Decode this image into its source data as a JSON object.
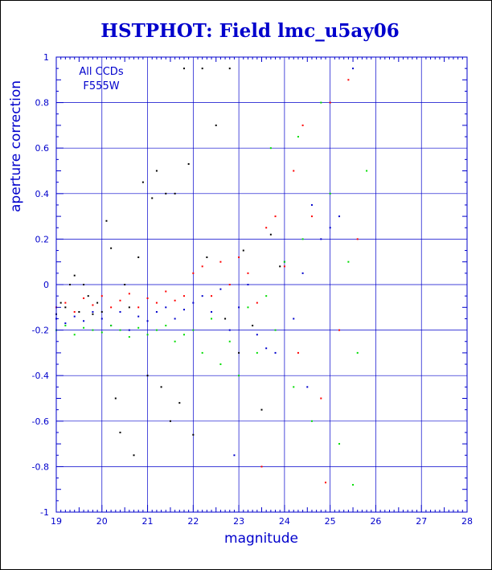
{
  "chart_data": {
    "type": "scatter",
    "title": "HSTPHOT: Field lmc_u5ay06",
    "xlabel": "magnitude",
    "ylabel": "aperture correction",
    "xlim": [
      19,
      28
    ],
    "ylim": [
      -1,
      1
    ],
    "xticks": [
      "19",
      "20",
      "21",
      "22",
      "23",
      "24",
      "25",
      "26",
      "27",
      "28"
    ],
    "yticks": [
      "-1",
      "-0.8",
      "-0.6",
      "-0.4",
      "-0.2",
      "0",
      "0.2",
      "0.4",
      "0.6",
      "0.8",
      "1"
    ],
    "grid": true,
    "annotations": [
      "All CCDs",
      "F555W"
    ],
    "colors": {
      "title": "#0000cc",
      "axes": "#0000cc",
      "grid": "#0000cc"
    },
    "series": [
      {
        "color": "#000000",
        "points": [
          [
            19.0,
            -0.13
          ],
          [
            19.1,
            -0.08
          ],
          [
            19.2,
            -0.1
          ],
          [
            19.3,
            0.0
          ],
          [
            19.4,
            0.04
          ],
          [
            19.5,
            -0.12
          ],
          [
            19.6,
            0.0
          ],
          [
            19.7,
            -0.05
          ],
          [
            19.8,
            -0.13
          ],
          [
            19.9,
            -0.08
          ],
          [
            20.0,
            -0.12
          ],
          [
            20.1,
            0.28
          ],
          [
            20.2,
            0.16
          ],
          [
            20.3,
            -0.5
          ],
          [
            20.4,
            -0.65
          ],
          [
            20.5,
            0.0
          ],
          [
            20.6,
            -0.1
          ],
          [
            20.7,
            -0.75
          ],
          [
            20.8,
            0.12
          ],
          [
            20.9,
            0.45
          ],
          [
            21.0,
            -0.4
          ],
          [
            21.1,
            0.38
          ],
          [
            21.2,
            0.5
          ],
          [
            21.3,
            -0.45
          ],
          [
            21.4,
            0.4
          ],
          [
            21.5,
            -0.6
          ],
          [
            21.6,
            0.4
          ],
          [
            21.7,
            -0.52
          ],
          [
            21.8,
            0.95
          ],
          [
            21.9,
            0.53
          ],
          [
            22.0,
            -0.66
          ],
          [
            22.2,
            0.95
          ],
          [
            22.3,
            0.12
          ],
          [
            22.5,
            0.7
          ],
          [
            22.7,
            -0.15
          ],
          [
            22.8,
            0.95
          ],
          [
            23.0,
            -0.3
          ],
          [
            23.1,
            0.15
          ],
          [
            23.3,
            -0.18
          ],
          [
            23.5,
            -0.55
          ],
          [
            23.7,
            0.22
          ],
          [
            23.9,
            0.08
          ]
        ]
      },
      {
        "color": "#ff0000",
        "points": [
          [
            19.0,
            -0.1
          ],
          [
            19.2,
            -0.08
          ],
          [
            19.4,
            -0.12
          ],
          [
            19.6,
            -0.06
          ],
          [
            19.8,
            -0.09
          ],
          [
            20.0,
            -0.05
          ],
          [
            20.2,
            -0.1
          ],
          [
            20.4,
            -0.07
          ],
          [
            20.6,
            -0.04
          ],
          [
            20.8,
            -0.1
          ],
          [
            21.0,
            -0.06
          ],
          [
            21.2,
            -0.08
          ],
          [
            21.4,
            -0.03
          ],
          [
            21.6,
            -0.07
          ],
          [
            21.8,
            -0.05
          ],
          [
            22.0,
            0.05
          ],
          [
            22.2,
            0.08
          ],
          [
            22.4,
            -0.05
          ],
          [
            22.6,
            0.1
          ],
          [
            22.8,
            0.0
          ],
          [
            23.0,
            0.12
          ],
          [
            23.2,
            0.05
          ],
          [
            23.4,
            -0.08
          ],
          [
            23.6,
            0.25
          ],
          [
            23.8,
            0.3
          ],
          [
            24.0,
            0.08
          ],
          [
            24.2,
            0.5
          ],
          [
            24.4,
            0.7
          ],
          [
            24.6,
            0.3
          ],
          [
            24.8,
            -0.5
          ],
          [
            25.0,
            0.8
          ],
          [
            25.2,
            -0.2
          ],
          [
            25.4,
            0.9
          ],
          [
            25.6,
            0.2
          ],
          [
            24.3,
            -0.3
          ],
          [
            23.5,
            -0.8
          ],
          [
            24.9,
            -0.87
          ]
        ]
      },
      {
        "color": "#0000cc",
        "points": [
          [
            19.0,
            -0.15
          ],
          [
            19.2,
            -0.17
          ],
          [
            19.4,
            -0.14
          ],
          [
            19.6,
            -0.16
          ],
          [
            19.8,
            -0.12
          ],
          [
            20.0,
            -0.15
          ],
          [
            20.2,
            -0.18
          ],
          [
            20.4,
            -0.12
          ],
          [
            20.6,
            -0.2
          ],
          [
            20.8,
            -0.14
          ],
          [
            21.0,
            -0.16
          ],
          [
            21.2,
            -0.12
          ],
          [
            21.4,
            -0.1
          ],
          [
            21.6,
            -0.15
          ],
          [
            21.8,
            -0.11
          ],
          [
            22.0,
            -0.08
          ],
          [
            22.2,
            -0.05
          ],
          [
            22.4,
            -0.12
          ],
          [
            22.6,
            -0.02
          ],
          [
            22.8,
            -0.2
          ],
          [
            23.0,
            -0.1
          ],
          [
            23.2,
            0.0
          ],
          [
            23.4,
            -0.22
          ],
          [
            23.6,
            -0.28
          ],
          [
            23.8,
            -0.3
          ],
          [
            24.0,
            0.1
          ],
          [
            24.2,
            -0.15
          ],
          [
            24.4,
            0.05
          ],
          [
            24.6,
            0.35
          ],
          [
            24.8,
            0.2
          ],
          [
            25.2,
            0.3
          ],
          [
            25.5,
            0.95
          ],
          [
            22.9,
            -0.75
          ],
          [
            24.5,
            -0.45
          ],
          [
            25.0,
            0.25
          ]
        ]
      },
      {
        "color": "#00dd00",
        "points": [
          [
            19.0,
            -0.2
          ],
          [
            19.2,
            -0.18
          ],
          [
            19.4,
            -0.22
          ],
          [
            19.6,
            -0.19
          ],
          [
            19.8,
            -0.2
          ],
          [
            20.0,
            -0.21
          ],
          [
            20.2,
            -0.18
          ],
          [
            20.4,
            -0.2
          ],
          [
            20.6,
            -0.23
          ],
          [
            20.8,
            -0.19
          ],
          [
            21.0,
            -0.22
          ],
          [
            21.2,
            -0.2
          ],
          [
            21.4,
            -0.18
          ],
          [
            21.6,
            -0.25
          ],
          [
            21.8,
            -0.22
          ],
          [
            22.0,
            -0.2
          ],
          [
            22.2,
            -0.3
          ],
          [
            22.4,
            -0.15
          ],
          [
            22.6,
            -0.35
          ],
          [
            22.8,
            -0.25
          ],
          [
            23.0,
            -0.4
          ],
          [
            23.2,
            -0.1
          ],
          [
            23.4,
            -0.3
          ],
          [
            23.6,
            -0.05
          ],
          [
            23.8,
            -0.2
          ],
          [
            24.0,
            0.1
          ],
          [
            24.2,
            -0.45
          ],
          [
            24.4,
            0.2
          ],
          [
            24.6,
            -0.6
          ],
          [
            24.8,
            0.8
          ],
          [
            25.0,
            0.4
          ],
          [
            25.2,
            -0.7
          ],
          [
            25.4,
            0.1
          ],
          [
            25.6,
            -0.3
          ],
          [
            25.8,
            0.5
          ],
          [
            23.7,
            0.6
          ],
          [
            24.3,
            0.65
          ],
          [
            25.5,
            -0.88
          ]
        ]
      }
    ]
  }
}
